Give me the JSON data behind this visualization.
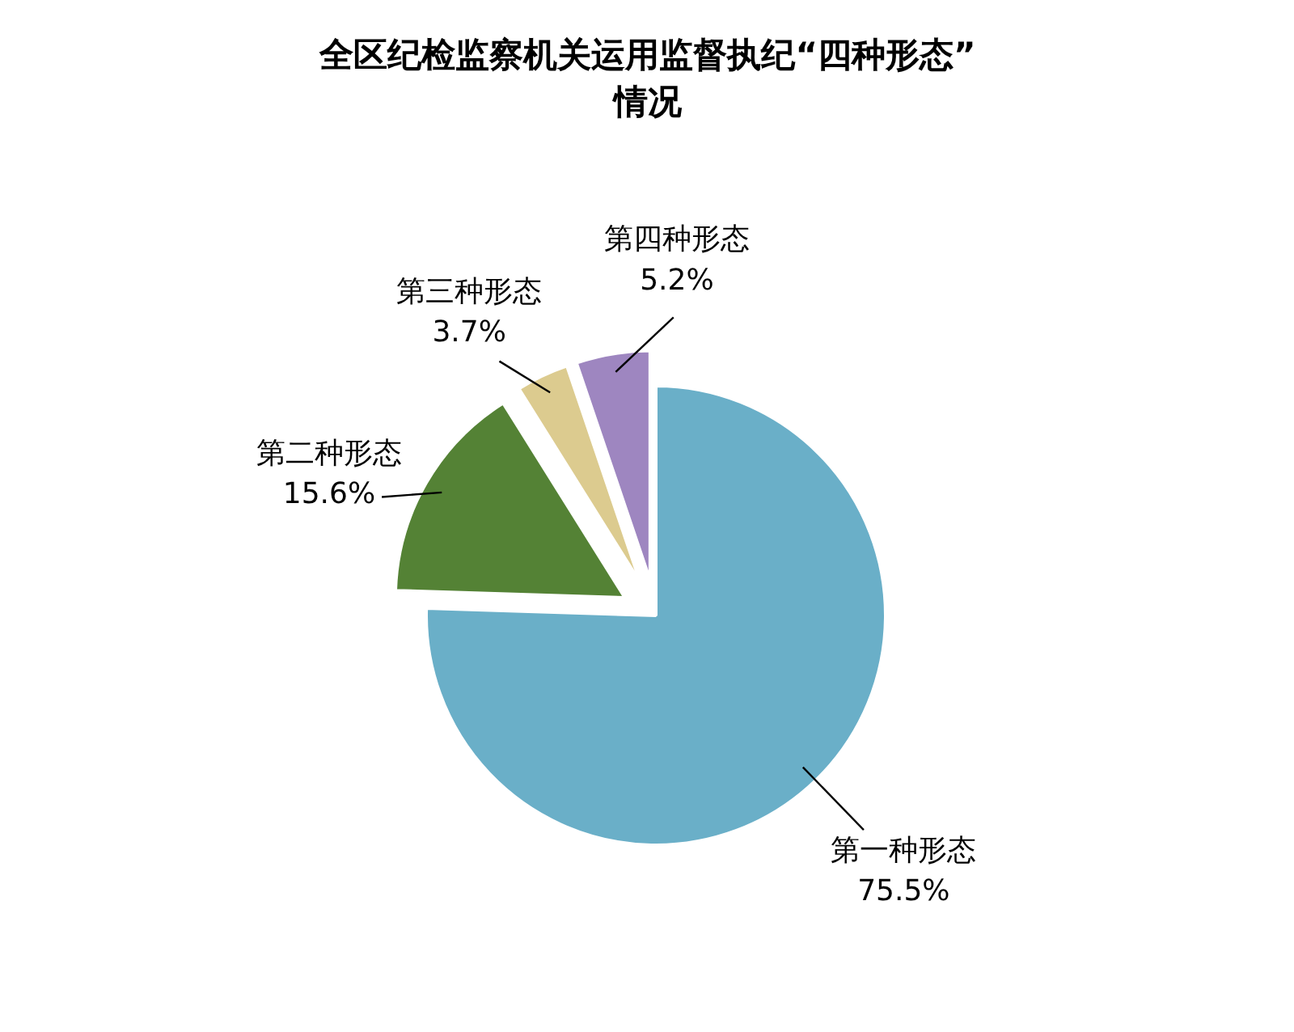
{
  "chart_data": {
    "type": "pie",
    "title": "全区纪检监察机关运用监督执纪“四种形态”\n情况",
    "categories": [
      "第一种形态",
      "第二种形态",
      "第三种形态",
      "第四种形态"
    ],
    "values": [
      75.5,
      15.6,
      3.7,
      5.2
    ],
    "colors": [
      "#6aafc8",
      "#548235",
      "#dccb8f",
      "#9e86c0"
    ],
    "value_labels": [
      "75.5%",
      "15.6%",
      "3.7%",
      "5.2%"
    ]
  }
}
